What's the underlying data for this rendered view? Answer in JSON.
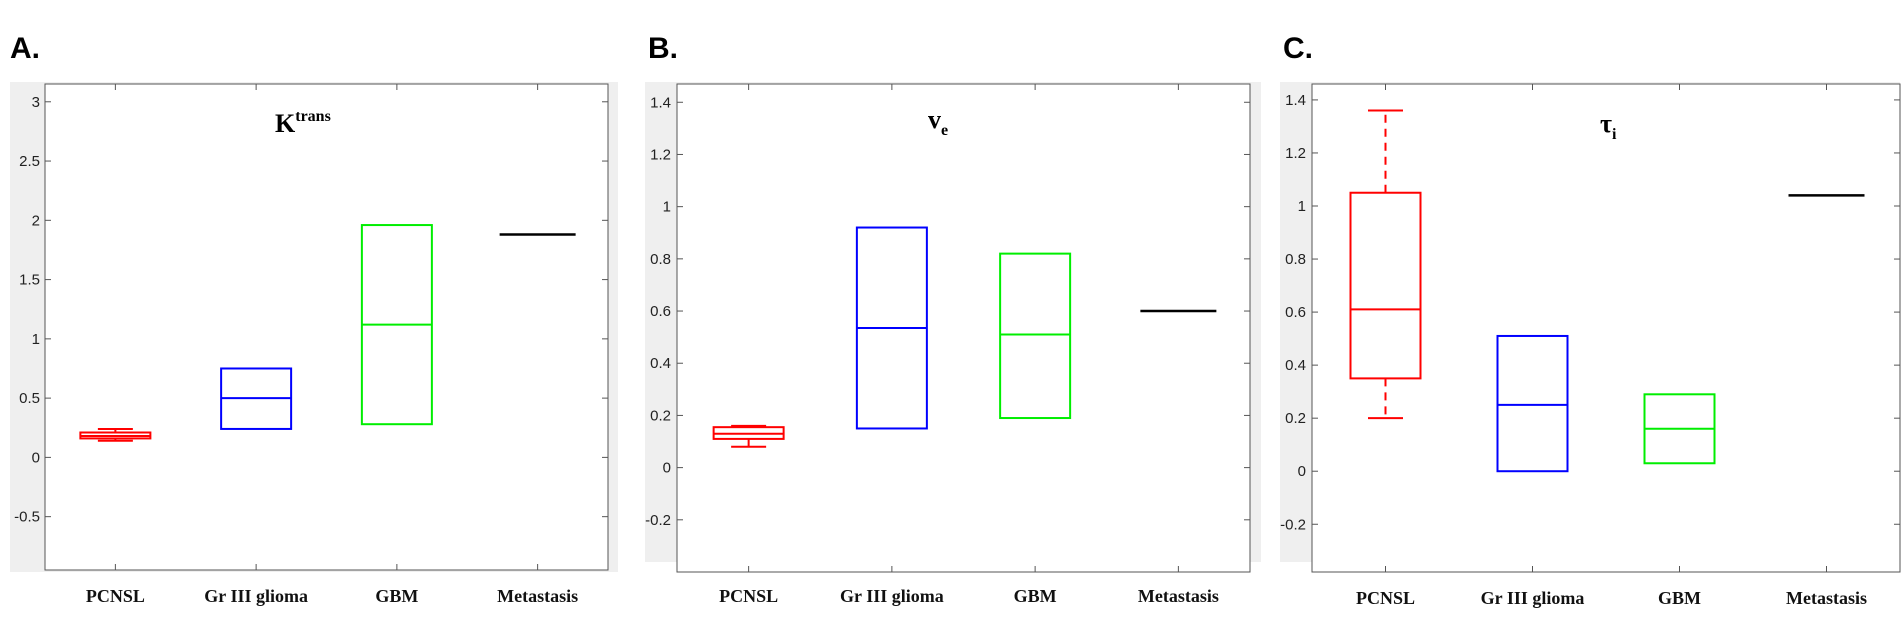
{
  "chart_data": [
    {
      "panel": "A.",
      "type": "box",
      "title": "K",
      "title_sup": "trans",
      "title_sub": "",
      "categories": [
        "PCNSL",
        "Gr III glioma",
        "GBM",
        "Metastasis"
      ],
      "ylim": [
        -0.95,
        3.15
      ],
      "yticks": [
        3,
        2.5,
        2,
        1.5,
        1,
        0.5,
        0,
        -0.5
      ],
      "ytick_labels": [
        "3",
        "2.5",
        "2",
        "1.5",
        "1",
        "0.5",
        "0",
        "-0.5"
      ],
      "grid": false,
      "boxes": [
        {
          "category": "PCNSL",
          "q1": 0.16,
          "median": 0.18,
          "q3": 0.21,
          "whisker_low": 0.14,
          "whisker_high": 0.24,
          "color": "#ff0000"
        },
        {
          "category": "Gr III glioma",
          "q1": 0.24,
          "median": 0.5,
          "q3": 0.75,
          "whisker_low": 0.24,
          "whisker_high": 0.75,
          "color": "#0000ff"
        },
        {
          "category": "GBM",
          "q1": 0.28,
          "median": 1.12,
          "q3": 1.96,
          "whisker_low": 0.28,
          "whisker_high": 1.96,
          "color": "#00ee00"
        },
        {
          "category": "Metastasis",
          "q1": 1.88,
          "median": 1.88,
          "q3": 1.88,
          "whisker_low": 1.88,
          "whisker_high": 1.88,
          "color": "#000000"
        }
      ]
    },
    {
      "panel": "B.",
      "type": "box",
      "title": "v",
      "title_sup": "",
      "title_sub": "e",
      "categories": [
        "PCNSL",
        "Gr III glioma",
        "GBM",
        "Metastasis"
      ],
      "ylim": [
        -0.4,
        1.47
      ],
      "yticks": [
        1.4,
        1.2,
        1,
        0.8,
        0.6,
        0.4,
        0.2,
        0,
        -0.2
      ],
      "ytick_labels": [
        "1.4",
        "1.2",
        "1",
        "0.8",
        "0.6",
        "0.4",
        "0.2",
        "0",
        "-0.2"
      ],
      "grid": false,
      "boxes": [
        {
          "category": "PCNSL",
          "q1": 0.11,
          "median": 0.13,
          "q3": 0.155,
          "whisker_low": 0.08,
          "whisker_high": 0.16,
          "color": "#ff0000"
        },
        {
          "category": "Gr III glioma",
          "q1": 0.15,
          "median": 0.535,
          "q3": 0.92,
          "whisker_low": 0.15,
          "whisker_high": 0.92,
          "color": "#0000ff"
        },
        {
          "category": "GBM",
          "q1": 0.19,
          "median": 0.51,
          "q3": 0.82,
          "whisker_low": 0.19,
          "whisker_high": 0.82,
          "color": "#00ee00"
        },
        {
          "category": "Metastasis",
          "q1": 0.6,
          "median": 0.6,
          "q3": 0.6,
          "whisker_low": 0.6,
          "whisker_high": 0.6,
          "color": "#000000"
        }
      ]
    },
    {
      "panel": "C.",
      "type": "box",
      "title": "τ",
      "title_sup": "",
      "title_sub": "i",
      "categories": [
        "PCNSL",
        "Gr III glioma",
        "GBM",
        "Metastasis"
      ],
      "ylim": [
        -0.38,
        1.46
      ],
      "yticks": [
        1.4,
        1.2,
        1,
        0.8,
        0.6,
        0.4,
        0.2,
        0,
        -0.2
      ],
      "ytick_labels": [
        "1.4",
        "1.2",
        "1",
        "0.8",
        "0.6",
        "0.4",
        "0.2",
        "0",
        "-0.2"
      ],
      "grid": false,
      "boxes": [
        {
          "category": "PCNSL",
          "q1": 0.35,
          "median": 0.61,
          "q3": 1.05,
          "whisker_low": 0.2,
          "whisker_high": 1.36,
          "color": "#ff0000",
          "dashed_whisker": true
        },
        {
          "category": "Gr III glioma",
          "q1": 0.0,
          "median": 0.25,
          "q3": 0.51,
          "whisker_low": 0.0,
          "whisker_high": 0.51,
          "color": "#0000ff"
        },
        {
          "category": "GBM",
          "q1": 0.03,
          "median": 0.16,
          "q3": 0.29,
          "whisker_low": 0.03,
          "whisker_high": 0.29,
          "color": "#00ee00"
        },
        {
          "category": "Metastasis",
          "q1": 1.04,
          "median": 1.04,
          "q3": 1.04,
          "whisker_low": 1.04,
          "whisker_high": 1.04,
          "color": "#000000"
        }
      ]
    }
  ]
}
